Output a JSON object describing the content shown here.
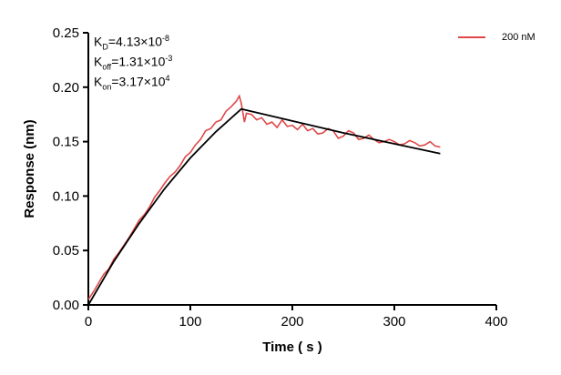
{
  "chart_data": {
    "type": "line",
    "xlabel": "Time ( s )",
    "ylabel": "Response (nm)",
    "xlim": [
      0,
      400
    ],
    "ylim": [
      0,
      0.25
    ],
    "xticks": [
      "0",
      "100",
      "200",
      "300",
      "400"
    ],
    "yticks": [
      "0.00",
      "0.05",
      "0.10",
      "0.15",
      "0.20",
      "0.25"
    ],
    "legend_position": "top-right",
    "annotations": {
      "kd": {
        "k": "K",
        "sub": "D",
        "val": "=4.13×10",
        "exp": "-8"
      },
      "koff": {
        "k": "K",
        "sub": "off",
        "val": "=1.31×10",
        "exp": "-3"
      },
      "kon": {
        "k": "K",
        "sub": "on",
        "val": "=3.17×10",
        "exp": "4"
      }
    },
    "series": [
      {
        "name": "200 nM",
        "color": "#e04848",
        "x": [
          0,
          5,
          10,
          15,
          20,
          25,
          30,
          35,
          40,
          45,
          50,
          55,
          60,
          65,
          70,
          75,
          80,
          85,
          90,
          95,
          100,
          105,
          110,
          115,
          120,
          125,
          130,
          135,
          140,
          145,
          148,
          150,
          153,
          155,
          160,
          165,
          170,
          175,
          180,
          185,
          190,
          195,
          200,
          205,
          210,
          215,
          220,
          225,
          230,
          235,
          240,
          245,
          250,
          255,
          260,
          265,
          270,
          275,
          280,
          285,
          290,
          295,
          300,
          305,
          310,
          315,
          320,
          325,
          330,
          335,
          340,
          345
        ],
        "y": [
          0.005,
          0.012,
          0.02,
          0.028,
          0.033,
          0.042,
          0.048,
          0.055,
          0.062,
          0.07,
          0.078,
          0.083,
          0.09,
          0.099,
          0.105,
          0.112,
          0.118,
          0.122,
          0.128,
          0.136,
          0.14,
          0.147,
          0.152,
          0.16,
          0.162,
          0.168,
          0.17,
          0.178,
          0.182,
          0.187,
          0.192,
          0.185,
          0.168,
          0.176,
          0.175,
          0.17,
          0.172,
          0.166,
          0.168,
          0.163,
          0.17,
          0.164,
          0.165,
          0.161,
          0.166,
          0.16,
          0.162,
          0.157,
          0.158,
          0.162,
          0.16,
          0.153,
          0.155,
          0.16,
          0.158,
          0.152,
          0.153,
          0.156,
          0.152,
          0.149,
          0.15,
          0.152,
          0.15,
          0.147,
          0.148,
          0.151,
          0.149,
          0.146,
          0.147,
          0.15,
          0.146,
          0.145
        ]
      },
      {
        "name": "",
        "color": "#000000",
        "x": [
          0,
          25,
          50,
          75,
          100,
          125,
          150,
          200,
          250,
          300,
          345
        ],
        "y": [
          0,
          0.04,
          0.075,
          0.107,
          0.135,
          0.159,
          0.18,
          0.169,
          0.158,
          0.148,
          0.139
        ]
      }
    ]
  }
}
